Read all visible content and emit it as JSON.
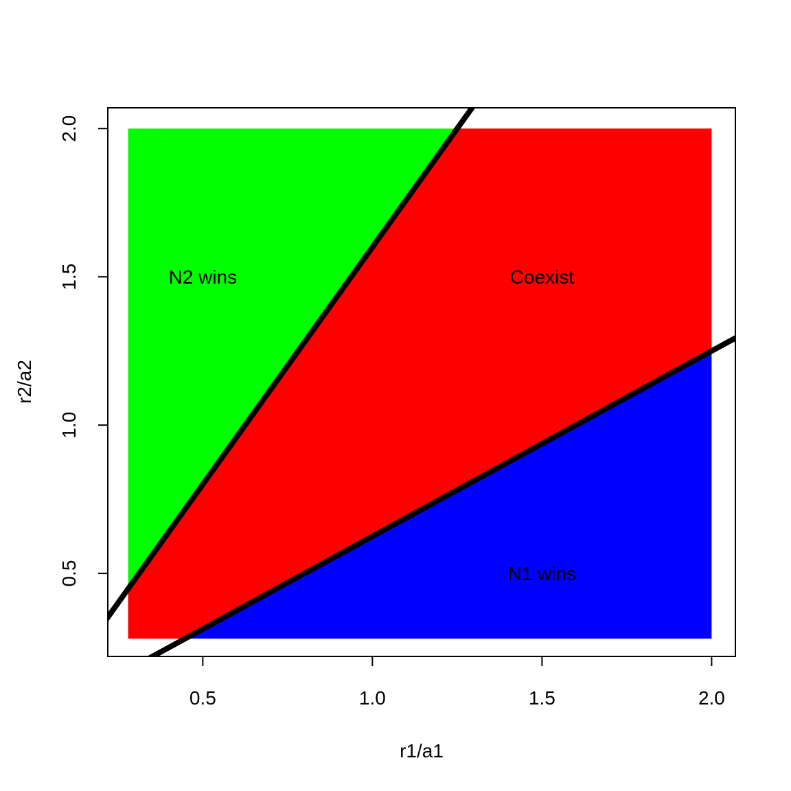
{
  "chart_data": {
    "type": "area",
    "title": "",
    "xlabel": "r1/a1",
    "ylabel": "r2/a2",
    "xlim": [
      0.22,
      2.07
    ],
    "ylim": [
      0.22,
      2.07
    ],
    "x_ticks": [
      "0.5",
      "1.0",
      "1.5",
      "2.0"
    ],
    "y_ticks": [
      "0.5",
      "1.0",
      "1.5",
      "2.0"
    ],
    "grid": false,
    "fill_range": {
      "x": [
        0.28,
        2.0
      ],
      "y": [
        0.28,
        2.0
      ]
    },
    "boundary_lines": [
      {
        "name": "upper",
        "slope": 1.6,
        "intercept": 0.0
      },
      {
        "name": "lower",
        "slope": 0.625,
        "intercept": 0.0
      }
    ],
    "regions": [
      {
        "label": "N2 wins",
        "color": "#00ff00",
        "label_at": [
          0.5,
          1.5
        ]
      },
      {
        "label": "Coexist",
        "color": "#ff0000",
        "label_at": [
          1.5,
          1.5
        ]
      },
      {
        "label": "N1 wins",
        "color": "#0000ff",
        "label_at": [
          1.5,
          0.5
        ]
      }
    ]
  }
}
